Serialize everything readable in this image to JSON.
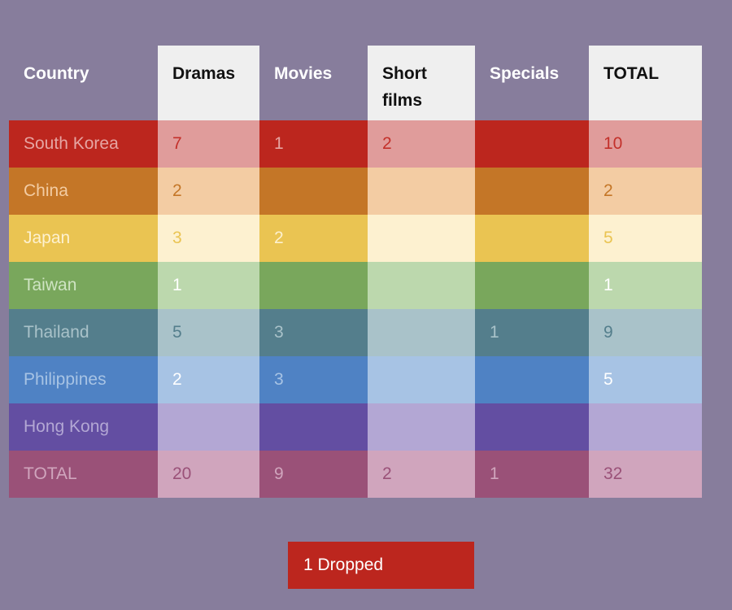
{
  "chart_data": {
    "type": "table",
    "columns": [
      "Country",
      "Dramas",
      "Movies",
      "Short films",
      "Specials",
      "TOTAL"
    ],
    "rows": [
      {
        "country": "South Korea",
        "values": [
          "7",
          "1",
          "2",
          "",
          "10"
        ],
        "colors": {
          "dark": "#bc261e",
          "light": "#e09c9b",
          "text_on_light": "#c3312b",
          "text_on_dark": "#e6a5a2"
        }
      },
      {
        "country": "China",
        "values": [
          "2",
          "",
          "",
          "",
          "2"
        ],
        "colors": {
          "dark": "#c47627",
          "light": "#f3cca3",
          "text_on_light": "#c47627",
          "text_on_dark": "#f3cca3"
        }
      },
      {
        "country": "Japan",
        "values": [
          "3",
          "2",
          "",
          "",
          "5"
        ],
        "colors": {
          "dark": "#eac452",
          "light": "#fdf1d0",
          "text_on_light": "#eac452",
          "text_on_dark": "#fdf1d0"
        }
      },
      {
        "country": "Taiwan",
        "values": [
          "1",
          "",
          "",
          "",
          "1"
        ],
        "colors": {
          "dark": "#79a75c",
          "light": "#bcd8ad",
          "text_on_light": "#ffffff",
          "text_on_dark": "#cfe4c3"
        }
      },
      {
        "country": "Thailand",
        "values": [
          "5",
          "3",
          "",
          "1",
          "9"
        ],
        "colors": {
          "dark": "#547e8c",
          "light": "#a9c2c9",
          "text_on_light": "#547e8c",
          "text_on_dark": "#a9c2c9"
        }
      },
      {
        "country": "Philippines",
        "values": [
          "2",
          "3",
          "",
          "",
          "5"
        ],
        "colors": {
          "dark": "#4f82c4",
          "light": "#a7c3e4",
          "text_on_light": "#ffffff",
          "text_on_dark": "#a7c3e4"
        }
      },
      {
        "country": "Hong Kong",
        "values": [
          "",
          "",
          "",
          "",
          ""
        ],
        "colors": {
          "dark": "#634ea2",
          "light": "#b3a7d4",
          "text_on_light": "#ffffff",
          "text_on_dark": "#b3a7d4"
        }
      },
      {
        "country": "TOTAL",
        "values": [
          "20",
          "9",
          "2",
          "1",
          "32"
        ],
        "colors": {
          "dark": "#9a5178",
          "light": "#d0a5bd",
          "text_on_light": "#9a5178",
          "text_on_dark": "#d0a5bd"
        }
      }
    ],
    "column_shades": [
      "dark",
      "light",
      "dark",
      "light",
      "dark",
      "light"
    ],
    "header_colors": {
      "plain_text": "#ffffff",
      "light_bg": "#efefef",
      "light_text": "#111111"
    }
  },
  "footer": {
    "dropped_label": "1 Dropped",
    "dropped_color": "#bc261e"
  },
  "background_color": "#877d9c"
}
